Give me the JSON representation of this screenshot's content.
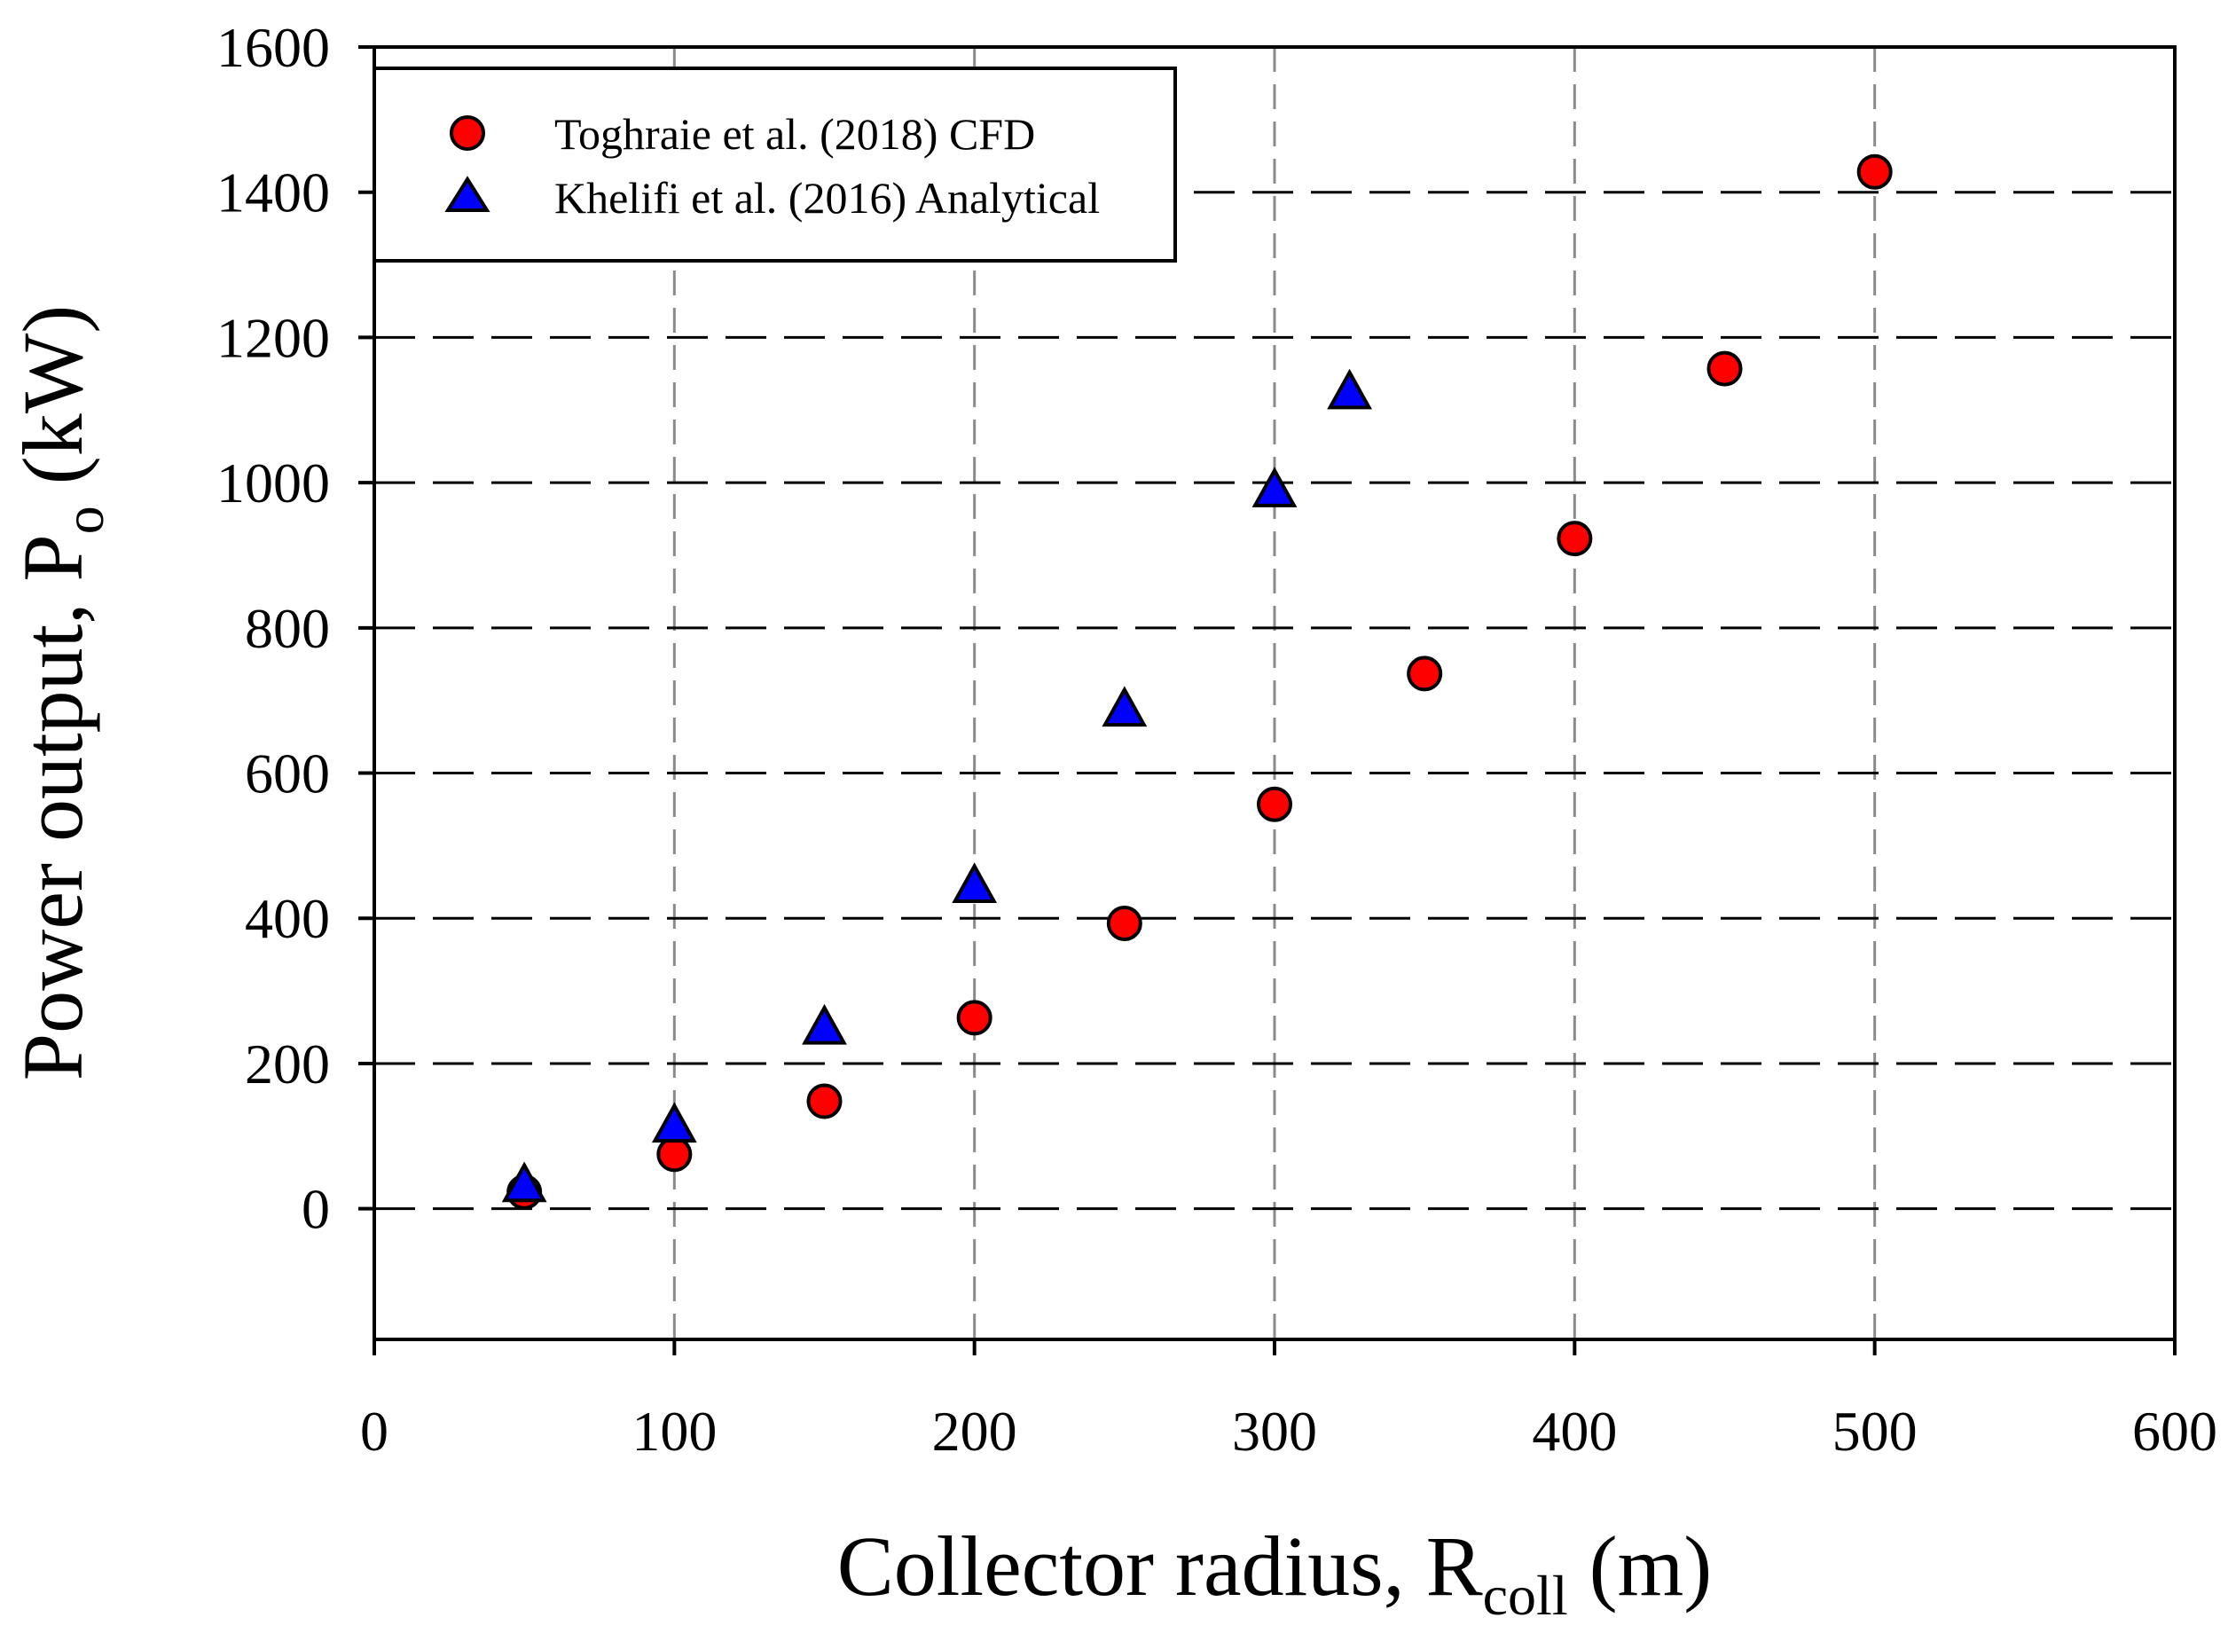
{
  "chart_data": {
    "type": "scatter",
    "title": "",
    "xlabel": {
      "main": "Collector radius, R",
      "sub": "coll",
      "unit": "(m)"
    },
    "ylabel": {
      "main": "Power output, P",
      "sub": "o",
      "unit": "(kW)"
    },
    "xlim": [
      0,
      600
    ],
    "ylim": [
      -180,
      1600
    ],
    "xticks": [
      0,
      100,
      200,
      300,
      400,
      500,
      600
    ],
    "yticks": [
      0,
      200,
      400,
      600,
      800,
      1000,
      1200,
      1400,
      1600
    ],
    "xtick_labels": [
      "0",
      "100",
      "200",
      "300",
      "400",
      "500",
      "600"
    ],
    "ytick_labels": [
      "0",
      "200",
      "400",
      "600",
      "800",
      "1000",
      "1200",
      "1400",
      "1600"
    ],
    "grid": {
      "x": "dashed-gray",
      "y": "dashed-black"
    },
    "legend": {
      "position": "top-left"
    },
    "series": [
      {
        "name": "Toghraie et al. (2018) CFD",
        "marker": "circle",
        "color": "#ff0000",
        "x": [
          50,
          100,
          150,
          200,
          250,
          300,
          350,
          400,
          450,
          500
        ],
        "y": [
          23,
          75,
          148,
          263,
          393,
          557,
          737,
          923,
          1157,
          1428
        ]
      },
      {
        "name": "Khelifi et al. (2016) Analytical",
        "marker": "triangle",
        "color": "#0000ff",
        "x": [
          50,
          100,
          150,
          200,
          250,
          300,
          325
        ],
        "y": [
          33,
          115,
          250,
          445,
          688,
          990,
          1125
        ]
      }
    ]
  }
}
